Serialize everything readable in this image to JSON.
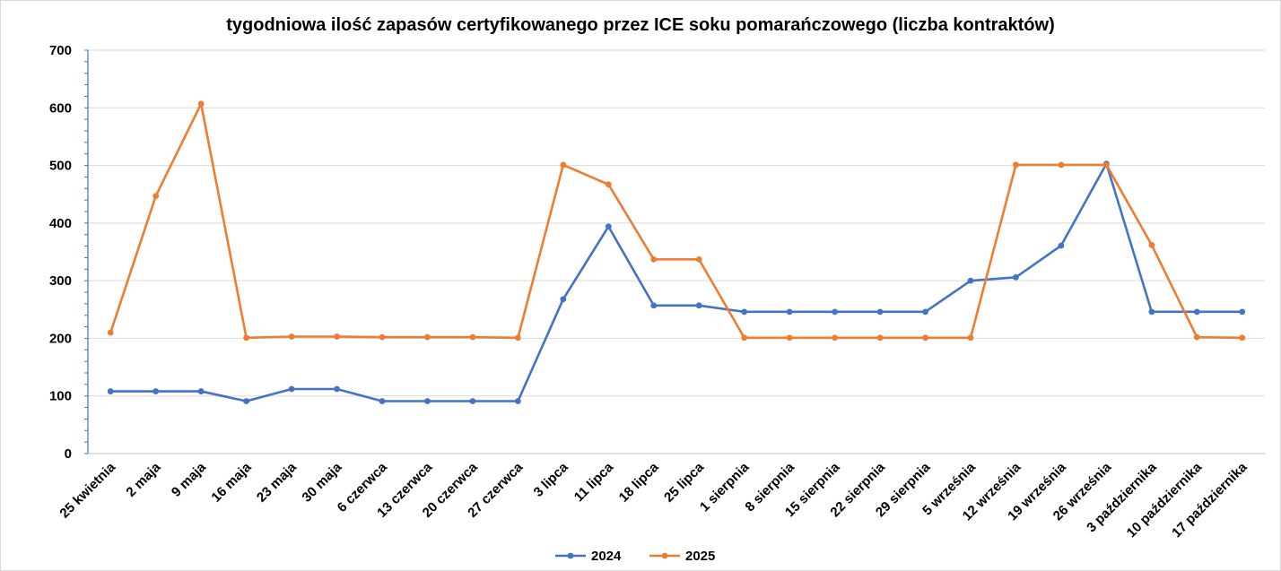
{
  "chart_data": {
    "type": "line",
    "title": "tygodniowa ilość zapasów certyfikowanego przez ICE soku pomarańczowego (liczba kontraktów)",
    "xlabel": "",
    "ylabel": "",
    "ylim": [
      0,
      700
    ],
    "yticks": [
      0,
      100,
      200,
      300,
      400,
      500,
      600,
      700
    ],
    "grid": true,
    "legend_position": "bottom",
    "categories": [
      "25 kwietnia",
      "2 maja",
      "9 maja",
      "16 maja",
      "23 maja",
      "30 maja",
      "6 czerwca",
      "13 czerwca",
      "20 czerwca",
      "27 czerwca",
      "3 lipca",
      "11 lipca",
      "18 lipca",
      "25 lipca",
      "1 sierpnia",
      "8 sierpnia",
      "15 sierpnia",
      "22 sierpnia",
      "29 sierpnia",
      "5 września",
      "12 września",
      "19 września",
      "26 września",
      "3 października",
      "10 października",
      "17 października"
    ],
    "series": [
      {
        "name": "2024",
        "color": "#4472c4",
        "values": [
          108,
          108,
          108,
          91,
          112,
          112,
          91,
          91,
          91,
          91,
          268,
          394,
          257,
          257,
          246,
          246,
          246,
          246,
          246,
          300,
          306,
          361,
          503,
          246,
          246,
          246
        ]
      },
      {
        "name": "2025",
        "color": "#ed7d31",
        "values": [
          210,
          447,
          607,
          201,
          203,
          203,
          202,
          202,
          202,
          201,
          501,
          467,
          337,
          337,
          201,
          201,
          201,
          201,
          201,
          201,
          501,
          501,
          501,
          362,
          202,
          201
        ]
      }
    ]
  }
}
